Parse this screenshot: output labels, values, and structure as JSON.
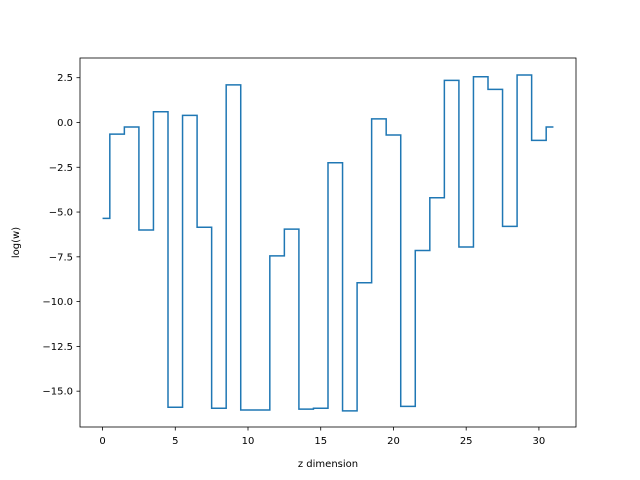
{
  "chart_data": {
    "type": "line",
    "drawstyle": "steps-mid",
    "title": "",
    "xlabel": "z dimension",
    "ylabel": "log(w)",
    "xlim": [
      -1.55,
      32.55
    ],
    "ylim": [
      -17.0,
      3.6
    ],
    "xticks": [
      0,
      5,
      10,
      15,
      20,
      25,
      30
    ],
    "xtick_labels": [
      "0",
      "5",
      "10",
      "15",
      "20",
      "25",
      "30"
    ],
    "yticks": [
      2.5,
      0.0,
      -2.5,
      -5.0,
      -7.5,
      -10.0,
      -12.5,
      -15.0
    ],
    "ytick_labels": [
      "2.5",
      "0.0",
      "−2.5",
      "−5.0",
      "−7.5",
      "−10.0",
      "−12.5",
      "−15.0"
    ],
    "grid": false,
    "legend": "none",
    "series": [
      {
        "color": "#1f77b4",
        "x": [
          0,
          1,
          2,
          3,
          4,
          5,
          6,
          7,
          8,
          9,
          10,
          11,
          12,
          13,
          14,
          15,
          16,
          17,
          18,
          19,
          20,
          21,
          22,
          23,
          24,
          25,
          26,
          27,
          28,
          29,
          30,
          31
        ],
        "y": [
          -5.35,
          -0.65,
          -0.25,
          -6.0,
          0.6,
          -15.9,
          0.4,
          -5.85,
          -15.95,
          2.1,
          -16.05,
          -16.05,
          -7.45,
          -5.95,
          -16.0,
          -15.95,
          -2.25,
          -16.1,
          -8.95,
          0.2,
          -0.7,
          -15.85,
          -7.15,
          -4.2,
          2.35,
          -6.95,
          2.55,
          1.85,
          -5.8,
          2.65,
          -1.0,
          -0.25
        ]
      }
    ]
  }
}
